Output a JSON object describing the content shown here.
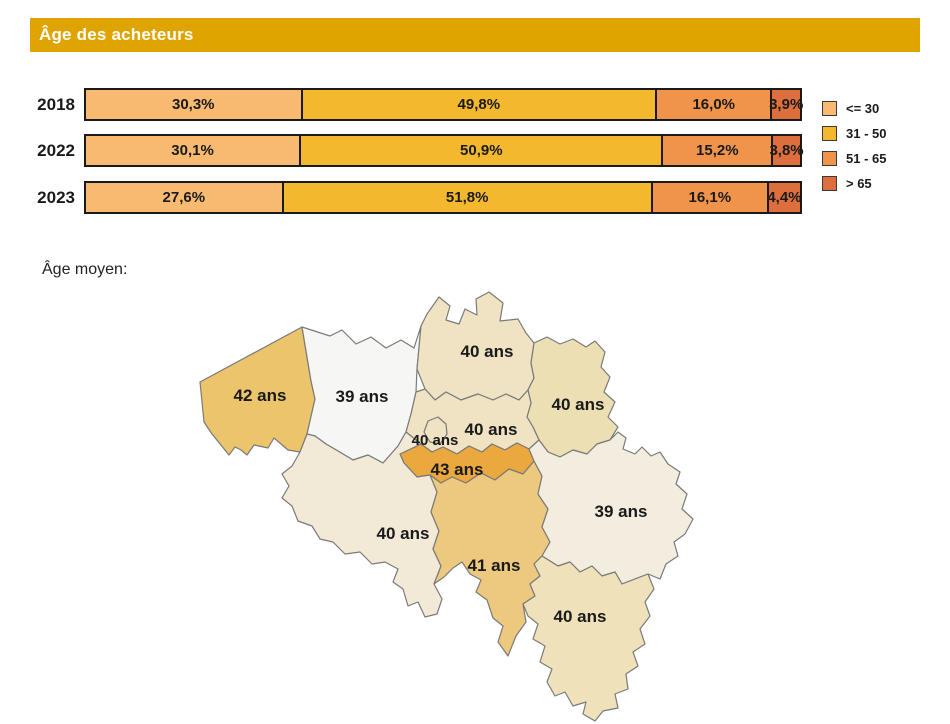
{
  "header": {
    "title": "Âge des acheteurs",
    "bg_color": "#E0A400",
    "text_color": "#FFFFFF"
  },
  "map_caption": "Âge moyen:",
  "chart_data": [
    {
      "type": "bar",
      "stacked": true,
      "orientation": "horizontal",
      "title": "Âge des acheteurs",
      "categories": [
        "2018",
        "2022",
        "2023"
      ],
      "series": [
        {
          "name": "<= 30",
          "color": "#F8BA70",
          "values": [
            30.3,
            30.1,
            27.6
          ],
          "value_labels": [
            "30,3%",
            "30,1%",
            "27,6%"
          ]
        },
        {
          "name": "31 - 50",
          "color": "#F3B82E",
          "values": [
            49.8,
            50.9,
            51.8
          ],
          "value_labels": [
            "49,8%",
            "50,9%",
            "51,8%"
          ]
        },
        {
          "name": "51 - 65",
          "color": "#F1944B",
          "values": [
            16.0,
            15.2,
            16.1
          ],
          "value_labels": [
            "16,0%",
            "15,2%",
            "16,1%"
          ]
        },
        {
          "name": "> 65",
          "color": "#DD6F3E",
          "values": [
            3.9,
            3.8,
            4.4
          ],
          "value_labels": [
            "3,9%",
            "3,8%",
            "4,4%"
          ]
        }
      ],
      "legend_position": "right",
      "xlim": [
        0,
        100
      ],
      "grid": false
    },
    {
      "type": "choropleth_map",
      "title": "Âge moyen:",
      "unit": "ans",
      "regions": [
        {
          "id": "west-flanders",
          "value": 42,
          "label": "42 ans",
          "color": "#EBC46C"
        },
        {
          "id": "east-flanders",
          "value": 39,
          "label": "39 ans",
          "color": "#F6F6F4"
        },
        {
          "id": "antwerp",
          "value": 40,
          "label": "40 ans",
          "color": "#F0E3C3"
        },
        {
          "id": "limburg",
          "value": 40,
          "label": "40 ans",
          "color": "#EDDFB4"
        },
        {
          "id": "flemish-brabant",
          "value": 40,
          "label": "40 ans",
          "color": "#F0E3C3"
        },
        {
          "id": "brussels",
          "value": 40,
          "label": "40 ans",
          "color": "#F0E3C3"
        },
        {
          "id": "walloon-brabant",
          "value": 43,
          "label": "43 ans",
          "color": "#EBA83E"
        },
        {
          "id": "hainaut",
          "value": 40,
          "label": "40 ans",
          "color": "#F2EAD7"
        },
        {
          "id": "namur",
          "value": 41,
          "label": "41 ans",
          "color": "#ECC97E"
        },
        {
          "id": "liege",
          "value": 39,
          "label": "39 ans",
          "color": "#F3EDDF"
        },
        {
          "id": "luxembourg",
          "value": 40,
          "label": "40 ans",
          "color": "#EFE2BA"
        }
      ],
      "stroke_color": "#7A7A7A"
    }
  ]
}
